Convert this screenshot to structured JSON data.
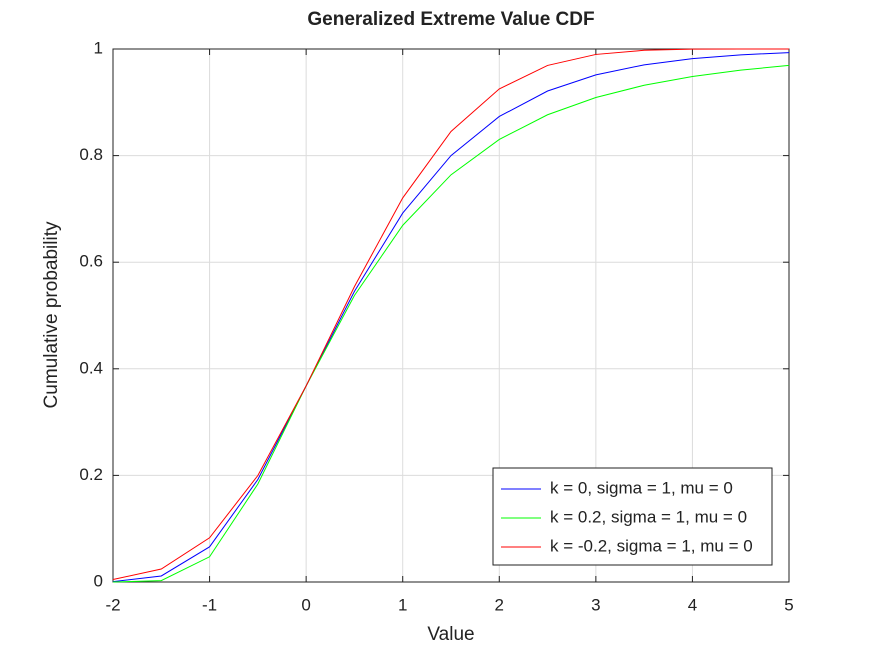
{
  "chart_data": {
    "type": "line",
    "title": "Generalized Extreme Value CDF",
    "xlabel": "Value",
    "ylabel": "Cumulative probability",
    "x": [
      -2,
      -1.5,
      -1,
      -0.5,
      0,
      0.5,
      1,
      1.5,
      2,
      2.5,
      3,
      3.5,
      4,
      4.5,
      5
    ],
    "series": [
      {
        "name": "k = 0, sigma = 1, mu = 0",
        "color": "#0000ff",
        "values": [
          0.0006,
          0.0113,
          0.066,
          0.1923,
          0.3679,
          0.5452,
          0.6922,
          0.8,
          0.8734,
          0.9212,
          0.9514,
          0.9703,
          0.9819,
          0.989,
          0.9933
        ]
      },
      {
        "name": "k = 0.2, sigma = 1, mu = 0",
        "color": "#00ff00",
        "values": [
          0.0,
          0.0026,
          0.0473,
          0.1839,
          0.3679,
          0.5375,
          0.6691,
          0.7639,
          0.8303,
          0.8766,
          0.909,
          0.932,
          0.9485,
          0.9604,
          0.9692
        ]
      },
      {
        "name": "k = -0.2, sigma = 1, mu = 0",
        "color": "#ff0000",
        "values": [
          0.0046,
          0.0244,
          0.083,
          0.1998,
          0.3679,
          0.5541,
          0.7206,
          0.8453,
          0.9252,
          0.9692,
          0.9898,
          0.9976,
          0.9997,
          1.0,
          1.0
        ]
      }
    ],
    "xlim": [
      -2,
      5
    ],
    "xticks": [
      -2,
      -1,
      0,
      1,
      2,
      3,
      4,
      5
    ],
    "ylim": [
      0,
      1
    ],
    "yticks": [
      0,
      0.2,
      0.4,
      0.6,
      0.8,
      1
    ],
    "grid": true,
    "legend": "southeast"
  }
}
